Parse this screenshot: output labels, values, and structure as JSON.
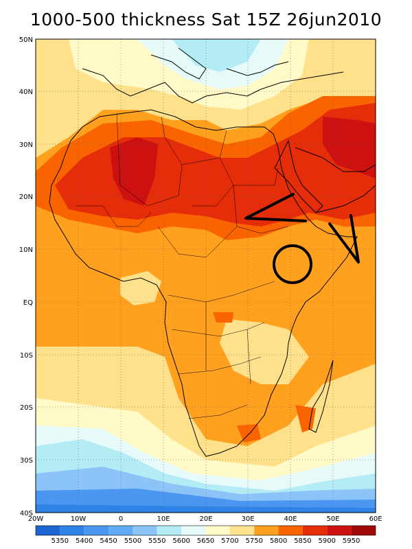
{
  "title": "1000-500 thickness Sat 15Z 26jun2010",
  "lat_labels": [
    "50N",
    "40N",
    "30N",
    "20N",
    "10N",
    "EQ",
    "10S",
    "20S",
    "30S",
    "40S"
  ],
  "lon_labels": [
    "20W",
    "10W",
    "0",
    "10E",
    "20E",
    "30E",
    "40E",
    "50E",
    "60E"
  ],
  "colorbar": {
    "labels": [
      "5350",
      "5400",
      "5450",
      "5500",
      "5550",
      "5600",
      "5650",
      "5700",
      "5750",
      "5800",
      "5850",
      "5900",
      "5950"
    ],
    "colors": [
      "#1e64d2",
      "#2f82e6",
      "#4b96f0",
      "#62acf5",
      "#8cc4f7",
      "#b4ecf5",
      "#e6fafa",
      "#fffac8",
      "#ffe18c",
      "#ffa01e",
      "#fa6400",
      "#e62d0a",
      "#cd1010",
      "#a00a0a"
    ]
  },
  "map_extent": {
    "lon_min": -20,
    "lon_max": 60,
    "lat_min": -40,
    "lat_max": 50
  }
}
